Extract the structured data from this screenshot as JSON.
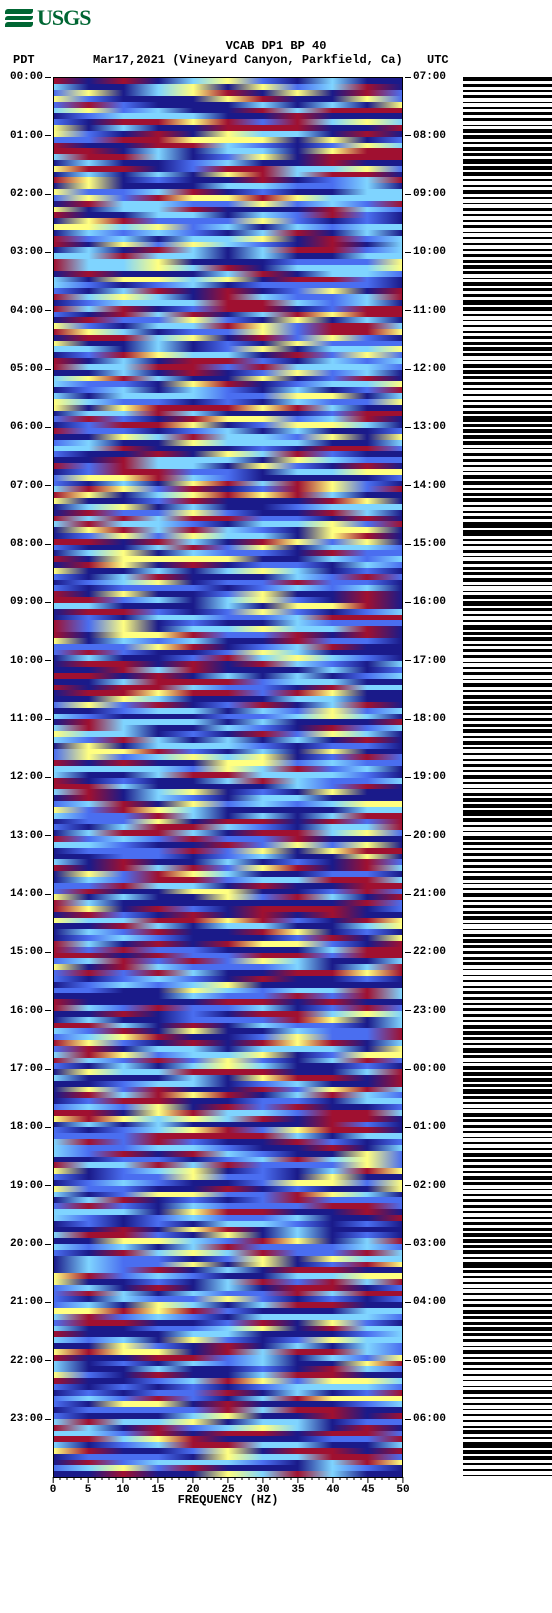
{
  "logo": {
    "text": "USGS",
    "color": "#006633"
  },
  "header": {
    "station": "VCAB DP1 BP 40",
    "pdt_label": "PDT",
    "date_location": "Mar17,2021 (Vineyard Canyon, Parkfield, Ca)",
    "utc_label": "UTC"
  },
  "chart": {
    "type": "spectrogram",
    "xlabel": "FREQUENCY (HZ)",
    "xlim": [
      0,
      50
    ],
    "xtick_step": 5,
    "xminor_step": 1,
    "left_hour_start": 0,
    "right_hour_start": 7,
    "hours": 24,
    "tick_label_format": "HH:00",
    "colors": {
      "background": "#ffffff",
      "text": "#000000",
      "palette_low": "#1a1a8a",
      "palette_mid1": "#4a6ef0",
      "palette_mid2": "#7fd4ff",
      "palette_mid3": "#ffff80",
      "palette_high": "#a01030",
      "seismo_trace": "#000000"
    },
    "label_fontsize": 11,
    "title_fontsize": 12,
    "spectrogram_rows": 240,
    "seismo_traces": 240
  }
}
